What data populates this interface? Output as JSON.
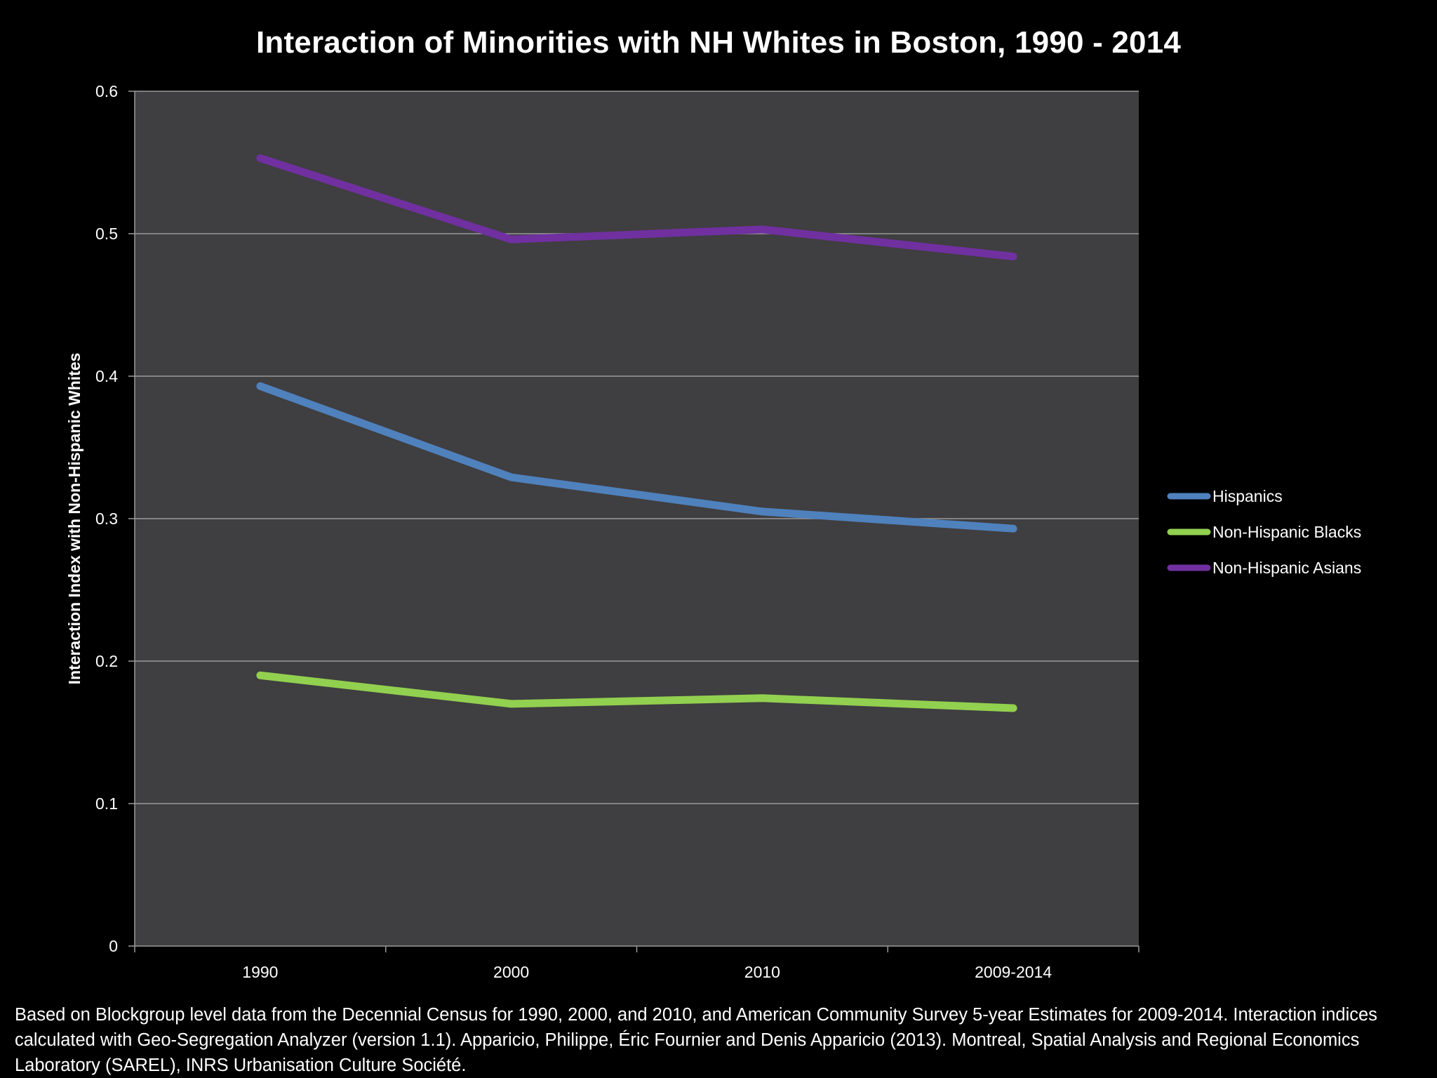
{
  "chart_data": {
    "type": "line",
    "title": "Interaction of Minorities with NH Whites in Boston, 1990 - 2014",
    "xlabel": "",
    "ylabel": "Interaction Index with Non-Hispanic Whites",
    "categories": [
      "1990",
      "2000",
      "2010",
      "2009-2014"
    ],
    "ylim": [
      0,
      0.6
    ],
    "yticks": [
      "0",
      "0.1",
      "0.2",
      "0.3",
      "0.4",
      "0.5",
      "0.6"
    ],
    "grid": true,
    "legend_position": "right",
    "series": [
      {
        "name": "Hispanics",
        "color": "#4f81bd",
        "values": [
          0.393,
          0.329,
          0.305,
          0.293
        ]
      },
      {
        "name": "Non-Hispanic Blacks",
        "color": "#92d050",
        "values": [
          0.19,
          0.17,
          0.174,
          0.167
        ]
      },
      {
        "name": "Non-Hispanic Asians",
        "color": "#7030a0",
        "values": [
          0.553,
          0.496,
          0.503,
          0.484
        ]
      }
    ]
  },
  "footnote": "Based on Blockgroup level data from the Decennial Census for 1990, 2000, and 2010, and American Community Survey 5-year Estimates for 2009-2014.   Interaction indices calculated with Geo-Segregation Analyzer (version 1.1).  Apparicio, Philippe, Éric Fournier and Denis Apparicio (2013).  Montreal, Spatial Analysis and Regional Economics Laboratory (SAREL), INRS Urbanisation Culture Société.",
  "colors": {
    "background": "#000000",
    "plot_area": "#3f3e40",
    "gridline": "#9a9a9a",
    "text": "#ffffff"
  }
}
